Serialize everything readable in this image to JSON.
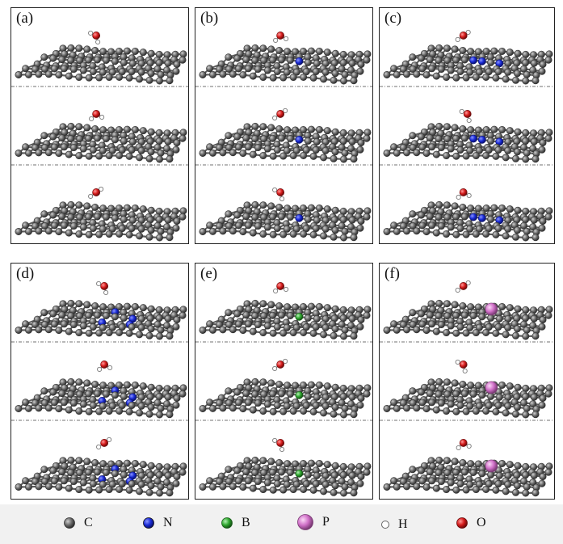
{
  "colors": {
    "C": "#6b6b6b",
    "N": "#1a2bd6",
    "B": "#2fa82f",
    "P": "#d070c8",
    "H": "#ffffff",
    "O": "#d41a1a"
  },
  "panels": [
    {
      "label": "(a)",
      "dopant": "pristine"
    },
    {
      "label": "(b)",
      "dopant": "N"
    },
    {
      "label": "(c)",
      "dopant": "N"
    },
    {
      "label": "(d)",
      "dopant": "N"
    },
    {
      "label": "(e)",
      "dopant": "B"
    },
    {
      "label": "(f)",
      "dopant": "P"
    }
  ],
  "legend": [
    {
      "symbol": "C",
      "label": "C"
    },
    {
      "symbol": "N",
      "label": "N"
    },
    {
      "symbol": "B",
      "label": "B"
    },
    {
      "symbol": "P",
      "label": "P"
    },
    {
      "symbol": "H",
      "label": "H"
    },
    {
      "symbol": "O",
      "label": "O"
    }
  ]
}
